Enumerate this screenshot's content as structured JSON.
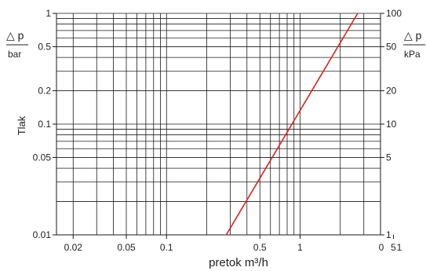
{
  "chart_data": {
    "type": "line",
    "title": "",
    "xlabel": "pretok m³/h",
    "ylabel": "Tlak",
    "left_axis_title": {
      "symbol": "△ p",
      "unit": "bar"
    },
    "right_axis_title": {
      "symbol": "△ p",
      "unit": "kPa"
    },
    "x_scale": "log",
    "y_scale": "log",
    "xlim": [
      0.015,
      4
    ],
    "ylim": [
      0.01,
      1
    ],
    "x_ticks": [
      {
        "value": 0.02,
        "label": "0.02"
      },
      {
        "value": 0.05,
        "label": "0.05"
      },
      {
        "value": 0.1,
        "label": "0.1"
      },
      {
        "value": 0.5,
        "label": "0.5"
      },
      {
        "value": 1,
        "label": "1"
      },
      {
        "value": 5,
        "label": "5"
      }
    ],
    "x_extra_labels": [
      "0",
      "1"
    ],
    "y_ticks_left": [
      {
        "value": 1,
        "label": "1"
      },
      {
        "value": 0.5,
        "label": "0.5"
      },
      {
        "value": 0.2,
        "label": "0.2"
      },
      {
        "value": 0.1,
        "label": "0.1"
      },
      {
        "value": 0.05,
        "label": "0.05"
      },
      {
        "value": 0.01,
        "label": "0.01"
      }
    ],
    "y_ticks_right": [
      {
        "value": 1,
        "label": "100"
      },
      {
        "value": 0.5,
        "label": "50"
      },
      {
        "value": 0.2,
        "label": "20"
      },
      {
        "value": 0.1,
        "label": "10"
      },
      {
        "value": 0.05,
        "label": "5"
      },
      {
        "value": 0.01,
        "label": "1"
      }
    ],
    "grid": true,
    "series": [
      {
        "color": "#e0201c",
        "x": [
          0.28,
          2.7
        ],
        "y": [
          0.01,
          1
        ]
      }
    ]
  }
}
